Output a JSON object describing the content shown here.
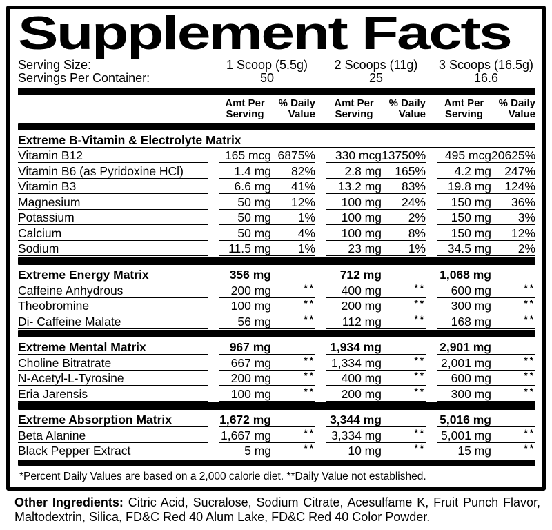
{
  "title": "Supplement Facts",
  "colors": {
    "background": "#ffffff",
    "text": "#000000"
  },
  "serving": {
    "size_label": "Serving Size:",
    "per_container_label": "Servings Per Container:",
    "sizes": [
      "1 Scoop (5.5g)",
      "2 Scoops (11g)",
      "3 Scoops (16.5g)"
    ],
    "counts": [
      "50",
      "25",
      "16.6"
    ]
  },
  "columns": {
    "amt_line1": "Amt Per",
    "amt_line2": "Serving",
    "dv_line1": "% Daily",
    "dv_line2": "Value"
  },
  "sections": [
    {
      "title": "Extreme B-Vitamin & Electrolyte Matrix",
      "title_amounts": null,
      "rows": [
        {
          "label": "Vitamin B12",
          "cells": [
            [
              "165 mcg",
              "6875%"
            ],
            [
              "330 mcg",
              "13750%"
            ],
            [
              "495 mcg",
              "20625%"
            ]
          ]
        },
        {
          "label": "Vitamin B6 (as Pyridoxine HCl)",
          "cells": [
            [
              "1.4 mg",
              "82%"
            ],
            [
              "2.8 mg",
              "165%"
            ],
            [
              "4.2 mg",
              "247%"
            ]
          ]
        },
        {
          "label": "Vitamin B3",
          "cells": [
            [
              "6.6 mg",
              "41%"
            ],
            [
              "13.2 mg",
              "83%"
            ],
            [
              "19.8 mg",
              "124%"
            ]
          ]
        },
        {
          "label": "Magnesium",
          "cells": [
            [
              "50 mg",
              "12%"
            ],
            [
              "100 mg",
              "24%"
            ],
            [
              "150 mg",
              "36%"
            ]
          ]
        },
        {
          "label": "Potassium",
          "cells": [
            [
              "50 mg",
              "1%"
            ],
            [
              "100 mg",
              "2%"
            ],
            [
              "150 mg",
              "3%"
            ]
          ]
        },
        {
          "label": "Calcium",
          "cells": [
            [
              "50 mg",
              "4%"
            ],
            [
              "100 mg",
              "8%"
            ],
            [
              "150 mg",
              "12%"
            ]
          ]
        },
        {
          "label": "Sodium",
          "cells": [
            [
              "11.5 mg",
              "1%"
            ],
            [
              "23 mg",
              "1%"
            ],
            [
              "34.5 mg",
              "2%"
            ]
          ]
        }
      ]
    },
    {
      "title": "Extreme Energy Matrix",
      "title_amounts": [
        "356 mg",
        "712 mg",
        "1,068 mg"
      ],
      "rows": [
        {
          "label": "Caffeine Anhydrous",
          "cells": [
            [
              "200 mg",
              "**"
            ],
            [
              "400 mg",
              "**"
            ],
            [
              "600 mg",
              "**"
            ]
          ]
        },
        {
          "label": "Theobromine",
          "cells": [
            [
              "100 mg",
              "**"
            ],
            [
              "200 mg",
              "**"
            ],
            [
              "300 mg",
              "**"
            ]
          ]
        },
        {
          "label": "Di- Caffeine Malate",
          "cells": [
            [
              "56 mg",
              "**"
            ],
            [
              "112 mg",
              "**"
            ],
            [
              "168 mg",
              "**"
            ]
          ]
        }
      ]
    },
    {
      "title": "Extreme Mental Matrix",
      "title_amounts": [
        "967 mg",
        "1,934 mg",
        "2,901 mg"
      ],
      "rows": [
        {
          "label": "Choline Bitratrate",
          "cells": [
            [
              "667 mg",
              "**"
            ],
            [
              "1,334 mg",
              "**"
            ],
            [
              "2,001 mg",
              "**"
            ]
          ]
        },
        {
          "label": "N-Acetyl-L-Tyrosine",
          "cells": [
            [
              "200 mg",
              "**"
            ],
            [
              "400 mg",
              "**"
            ],
            [
              "600 mg",
              "**"
            ]
          ]
        },
        {
          "label": "Eria Jarensis",
          "cells": [
            [
              "100 mg",
              "**"
            ],
            [
              "200 mg",
              "**"
            ],
            [
              "300 mg",
              "**"
            ]
          ]
        }
      ]
    },
    {
      "title": "Extreme Absorption Matrix",
      "title_amounts": [
        "1,672 mg",
        "3,344 mg",
        "5,016 mg"
      ],
      "rows": [
        {
          "label": "Beta Alanine",
          "cells": [
            [
              "1,667 mg",
              "**"
            ],
            [
              "3,334 mg",
              "**"
            ],
            [
              "5,001 mg",
              "**"
            ]
          ]
        },
        {
          "label": "Black Pepper Extract",
          "cells": [
            [
              "5 mg",
              "**"
            ],
            [
              "10 mg",
              "**"
            ],
            [
              "15 mg",
              "**"
            ]
          ]
        }
      ]
    }
  ],
  "footnote": "*Percent Daily Values are based on a 2,000 calorie diet. **Daily Value not established.",
  "other_ingredients": {
    "label": "Other Ingredients:",
    "text": "Citric Acid, Sucralose, Sodium Citrate, Acesulfame K, Fruit Punch Flavor, Maltodextrin, Silica, FD&C Red 40 Alum Lake, FD&C Red 40 Color Powder."
  }
}
